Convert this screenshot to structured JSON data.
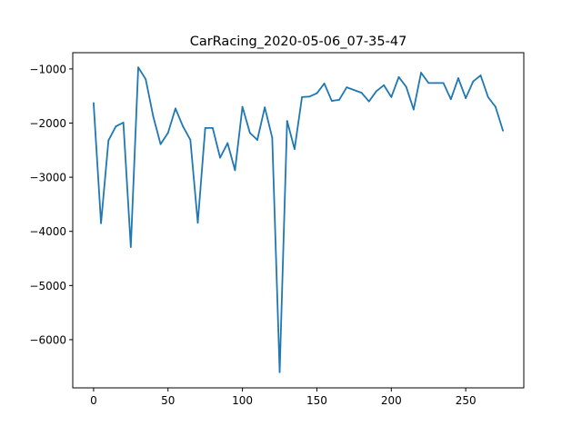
{
  "chart_data": {
    "type": "line",
    "title": "CarRacing_2020-05-06_07-35-47",
    "xlabel": "",
    "ylabel": "",
    "xlim": [
      -14,
      289
    ],
    "ylim": [
      -6890,
      -700
    ],
    "xticks": [
      0,
      50,
      100,
      150,
      200,
      250
    ],
    "yticks": [
      -6000,
      -5000,
      -4000,
      -3000,
      -2000,
      -1000
    ],
    "xtick_labels": [
      "0",
      "50",
      "100",
      "150",
      "200",
      "250"
    ],
    "ytick_labels": [
      "−6000",
      "−5000",
      "−4000",
      "−3000",
      "−2000",
      "−1000"
    ],
    "grid": false,
    "line_color": "#1f77b4",
    "series": [
      {
        "x": [
          0,
          5,
          10,
          15,
          20,
          25,
          30,
          35,
          40,
          45,
          50,
          55,
          60,
          65,
          70,
          75,
          80,
          85,
          90,
          95,
          100,
          105,
          110,
          115,
          120,
          125,
          130,
          135,
          140,
          145,
          150,
          155,
          160,
          165,
          170,
          175,
          180,
          185,
          190,
          195,
          200,
          205,
          210,
          215,
          220,
          225,
          230,
          235,
          240,
          245,
          250,
          255,
          260,
          265,
          270,
          275
        ],
        "values": [
          -1630,
          -3850,
          -2320,
          -2060,
          -1990,
          -4290,
          -970,
          -1190,
          -1870,
          -2390,
          -2180,
          -1730,
          -2060,
          -2310,
          -3840,
          -2090,
          -2090,
          -2640,
          -2370,
          -2870,
          -1700,
          -2180,
          -2310,
          -1710,
          -2270,
          -6600,
          -1960,
          -2480,
          -1520,
          -1510,
          -1450,
          -1270,
          -1590,
          -1570,
          -1340,
          -1390,
          -1440,
          -1600,
          -1410,
          -1300,
          -1520,
          -1150,
          -1330,
          -1750,
          -1070,
          -1260,
          -1260,
          -1260,
          -1560,
          -1170,
          -1540,
          -1230,
          -1120,
          -1520,
          -1700,
          -2140
        ]
      }
    ]
  }
}
